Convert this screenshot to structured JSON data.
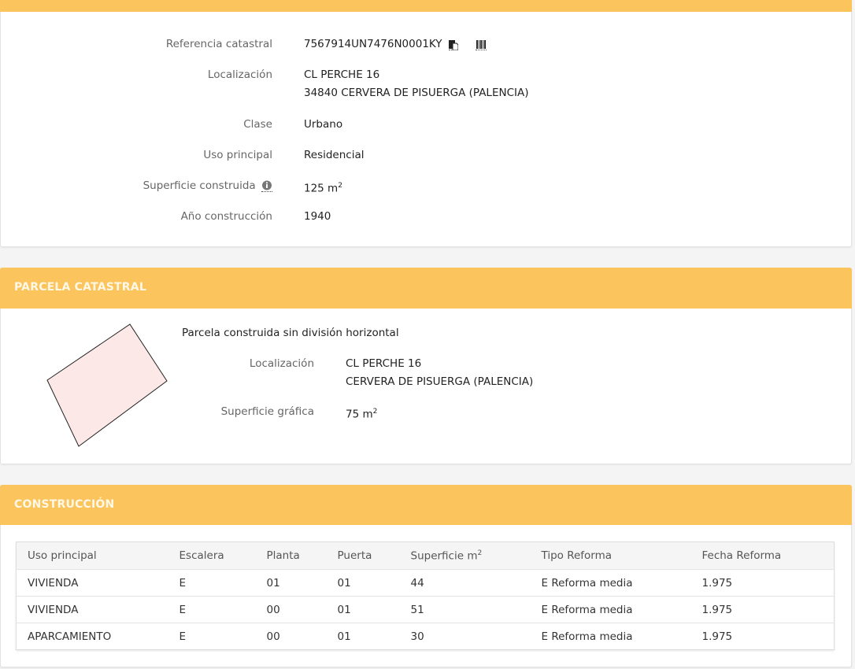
{
  "inmueble": {
    "referencia_label": "Referencia catastral",
    "referencia_value": "7567914UN7476N0001KY",
    "localizacion_label": "Localización",
    "localizacion_line1": "CL PERCHE 16",
    "localizacion_line2": "34840 CERVERA DE PISUERGA (PALENCIA)",
    "clase_label": "Clase",
    "clase_value": "Urbano",
    "uso_label": "Uso principal",
    "uso_value": "Residencial",
    "superficie_label": "Superficie construida",
    "superficie_value": "125 m",
    "superficie_sup": "2",
    "anio_label": "Año construcción",
    "anio_value": "1940"
  },
  "parcela": {
    "title": "PARCELA CATASTRAL",
    "tipo": "Parcela construida sin división horizontal",
    "localizacion_label": "Localización",
    "localizacion_line1": "CL PERCHE 16",
    "localizacion_line2": "CERVERA DE PISUERGA (PALENCIA)",
    "superficie_label": "Superficie gráfica",
    "superficie_value": "75 m",
    "superficie_sup": "2"
  },
  "construccion": {
    "title": "CONSTRUCCIÓN",
    "columns": [
      "Uso principal",
      "Escalera",
      "Planta",
      "Puerta",
      "Superficie m",
      "Tipo Reforma",
      "Fecha Reforma"
    ],
    "superficie_sup": "2",
    "rows": [
      [
        "VIVIENDA",
        "E",
        "01",
        "01",
        "44",
        "E Reforma media",
        "1.975"
      ],
      [
        "VIVIENDA",
        "E",
        "00",
        "01",
        "51",
        "E Reforma media",
        "1.975"
      ],
      [
        "APARCAMIENTO",
        "E",
        "00",
        "01",
        "30",
        "E Reforma media",
        "1.975"
      ]
    ]
  },
  "colors": {
    "header": "#fcc45c",
    "parcel_fill": "#fde8e8"
  }
}
